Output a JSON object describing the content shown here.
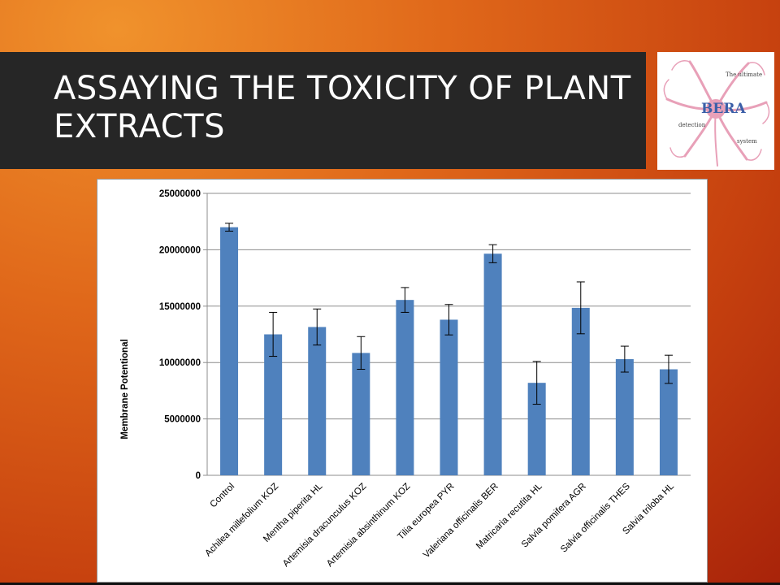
{
  "slide": {
    "title": "ASSAYING THE TOXICITY OF PLANT EXTRACTS"
  },
  "logo": {
    "brand": "BERA",
    "tagline_top": "The ultimate",
    "tagline_left": "detection",
    "tagline_bottom": "system",
    "accent_color": "#e8a0b8",
    "brand_color": "#3b5fa8"
  },
  "chart_data": {
    "type": "bar",
    "title": "",
    "xlabel": "",
    "ylabel": "Membrane Potentional",
    "ylim": [
      0,
      25000000
    ],
    "yticks": [
      0,
      5000000,
      10000000,
      15000000,
      20000000,
      25000000
    ],
    "grid": true,
    "bar_color": "#4f81bd",
    "categories": [
      "Control",
      "Achilea millefolium KOZ",
      "Mentha piperita HL",
      "Artemisia dracunculus KOZ",
      "Artemisia absinthinum KOZ",
      "Tilia europea PYR",
      "Valeriana officinalis BER",
      "Matricaria recutita HL",
      "Salvia pomifera AGR",
      "Salvia officinalis THES",
      "Salvia triloba HL"
    ],
    "values": [
      22000000,
      12500000,
      13150000,
      10850000,
      15550000,
      13800000,
      19650000,
      8200000,
      14850000,
      10300000,
      9400000
    ],
    "errors": [
      350000,
      1950000,
      1600000,
      1450000,
      1100000,
      1350000,
      800000,
      1900000,
      2300000,
      1150000,
      1250000
    ]
  }
}
